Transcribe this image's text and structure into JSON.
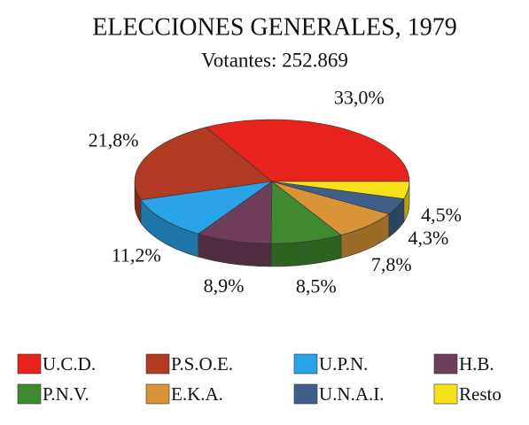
{
  "chart_data": {
    "type": "pie",
    "title": "ELECCIONES GENERALES, 1979",
    "subtitle": "Votantes: 252.869",
    "categories": [
      "U.C.D.",
      "P.S.O.E.",
      "U.P.N.",
      "H.B.",
      "P.N.V.",
      "E.K.A.",
      "U.N.A.I.",
      "Resto"
    ],
    "values": [
      33.0,
      21.8,
      11.2,
      8.9,
      8.5,
      7.8,
      4.3,
      4.5
    ],
    "value_labels": [
      "33,0%",
      "21,8%",
      "11,2%",
      "8,9%",
      "8,5%",
      "7,8%",
      "4,3%",
      "4,5%"
    ],
    "colors": [
      "#e8231d",
      "#b03a22",
      "#2aa3e8",
      "#6e3e5a",
      "#3f8a2e",
      "#d99438",
      "#3f5f8a",
      "#f5e21a"
    ]
  }
}
